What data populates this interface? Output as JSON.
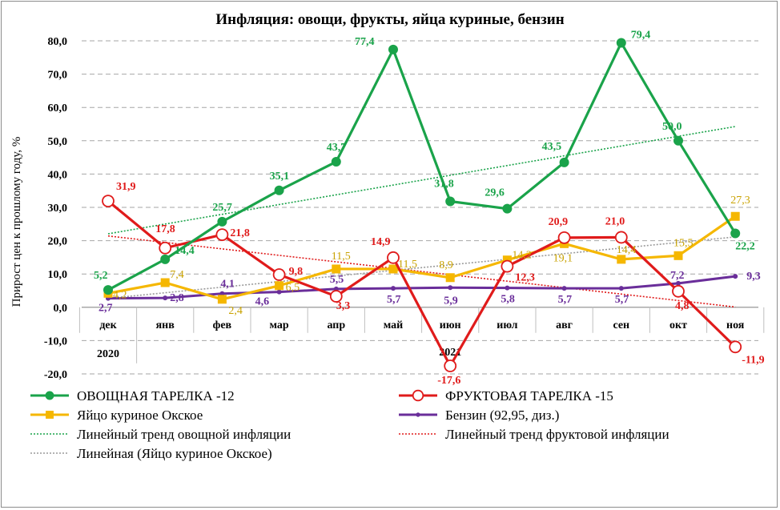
{
  "chart_data": {
    "type": "line",
    "title": "Инфляция: овощи, фрукты, яйца куриные, бензин",
    "ylabel": "Прирост цен к прошлому году, %",
    "ylim": [
      -20,
      80
    ],
    "yticks": [
      "-20,0",
      "-10,0",
      "0,0",
      "10,0",
      "20,0",
      "30,0",
      "40,0",
      "50,0",
      "60,0",
      "70,0",
      "80,0"
    ],
    "grid": true,
    "categories": [
      "дек",
      "янв",
      "фев",
      "мар",
      "апр",
      "май",
      "июн",
      "июл",
      "авг",
      "сен",
      "окт",
      "ноя"
    ],
    "year_labels": [
      "2020",
      "2021"
    ],
    "legend_position": "bottom",
    "series": [
      {
        "name": "ОВОЩНАЯ ТАРЕЛКА -12",
        "color": "#1aa34a",
        "marker": "circle-filled",
        "values": [
          5.2,
          14.4,
          25.7,
          35.1,
          43.7,
          77.4,
          31.8,
          29.6,
          43.5,
          79.4,
          50.0,
          22.2
        ],
        "labels": [
          "5,2",
          "14,4",
          "25,7",
          "35,1",
          "43,7",
          "77,4",
          "31,8",
          "29,6",
          "43,5",
          "79,4",
          "50,0",
          "22,2"
        ]
      },
      {
        "name": "ФРУКТОВАЯ ТАРЕЛКА -15",
        "color": "#e01b1b",
        "marker": "circle-open",
        "values": [
          31.9,
          17.8,
          21.8,
          9.8,
          3.3,
          14.9,
          -17.6,
          12.3,
          20.9,
          21.0,
          4.8,
          -11.9
        ],
        "labels": [
          "31,9",
          "17,8",
          "21,8",
          "9,8",
          "3,3",
          "14,9",
          "-17,6",
          "12,3",
          "20,9",
          "21,0",
          "4,8",
          "-11,9"
        ]
      },
      {
        "name": "Яйцо куриное Окское",
        "color": "#f5b700",
        "marker": "square",
        "values": [
          4.2,
          7.4,
          2.4,
          6.5,
          11.5,
          11.5,
          8.9,
          14.2,
          19.1,
          14.4,
          15.5,
          27.3
        ],
        "labels": [
          "4,2",
          "7,4",
          "2,4",
          "6,5",
          "11,5",
          "11,5",
          "8,9",
          "14,2",
          "19,1",
          "14,4",
          "15,5",
          "27,3"
        ]
      },
      {
        "name": "Бензин (92,95, диз.)",
        "color": "#6a2e9a",
        "marker": "dot",
        "values": [
          2.7,
          2.8,
          4.1,
          4.6,
          5.5,
          5.7,
          5.9,
          5.8,
          5.7,
          5.7,
          7.2,
          9.3
        ],
        "labels": [
          "2,7",
          "2,8",
          "4,1",
          "4,6",
          "5,5",
          "5,7",
          "5,9",
          "5,8",
          "5,7",
          "5,7",
          "7,2",
          "9,3"
        ]
      }
    ],
    "trendlines": [
      {
        "name": "Линейный тренд овощной инфляции",
        "color": "#1aa34a",
        "of_series": 0
      },
      {
        "name": "Линейный тренд фруктовой инфляции",
        "color": "#e01b1b",
        "of_series": 1
      },
      {
        "name": "Линейная (Яйцо куриное Окское)",
        "color": "#9a9a9a",
        "of_series": 2
      }
    ]
  }
}
